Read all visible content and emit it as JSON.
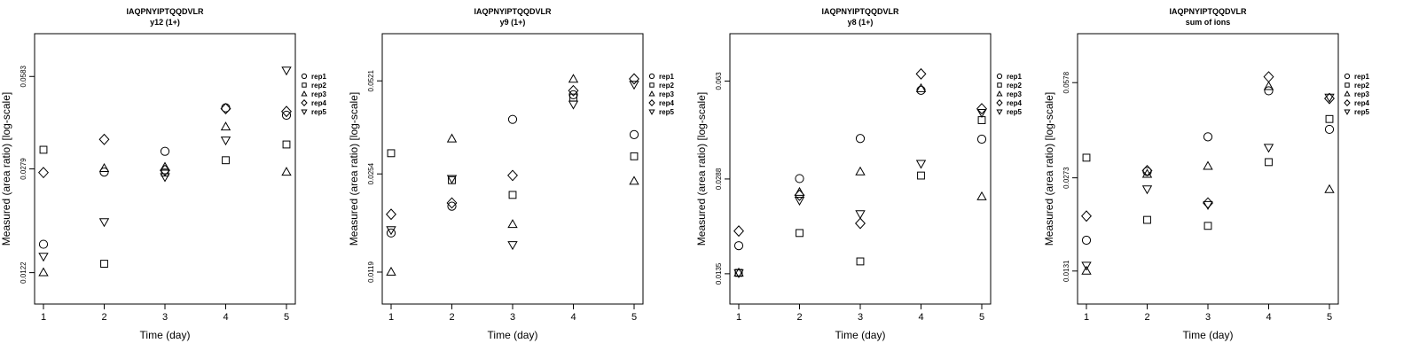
{
  "chart_data": [
    {
      "type": "scatter",
      "title": "IAQPNYIPTQQDVLR",
      "subtitle": "y12 (1+)",
      "xlabel": "Time (day)",
      "ylabel": "Measured (area ratio) [log-scale]",
      "x": [
        1,
        2,
        3,
        4,
        5
      ],
      "x_ticks": [
        "1",
        "2",
        "3",
        "4",
        "5"
      ],
      "y_scale": "log",
      "y_ticks": [
        "0.0122",
        "0.0279",
        "0.0583"
      ],
      "ylim": [
        0.0095,
        0.082
      ],
      "legend": [
        "rep1",
        "rep2",
        "rep3",
        "rep4",
        "rep5"
      ],
      "series": [
        {
          "name": "rep1",
          "marker": "circle",
          "values": [
            0.0153,
            0.0272,
            0.0321,
            0.0454,
            0.0428
          ]
        },
        {
          "name": "rep2",
          "marker": "square",
          "values": [
            0.0325,
            0.0131,
            0.0271,
            0.0299,
            0.0339
          ]
        },
        {
          "name": "rep3",
          "marker": "triangle-up",
          "values": [
            0.0122,
            0.028,
            0.0283,
            0.039,
            0.0272
          ]
        },
        {
          "name": "rep4",
          "marker": "diamond",
          "values": [
            0.0271,
            0.0353,
            0.0276,
            0.0451,
            0.0441
          ]
        },
        {
          "name": "rep5",
          "marker": "triangle-down",
          "values": [
            0.0139,
            0.0183,
            0.0262,
            0.0351,
            0.0613
          ]
        }
      ]
    },
    {
      "type": "scatter",
      "title": "IAQPNYIPTQQDVLR",
      "subtitle": "y9 (1+)",
      "xlabel": "Time (day)",
      "ylabel": "Measured (area ratio) [log-scale]",
      "x": [
        1,
        2,
        3,
        4,
        5
      ],
      "x_ticks": [
        "1",
        "2",
        "3",
        "4",
        "5"
      ],
      "y_scale": "log",
      "y_ticks": [
        "0.0119",
        "0.0254",
        "0.0521"
      ],
      "ylim": [
        0.0093,
        0.075
      ],
      "legend": [
        "rep1",
        "rep2",
        "rep3",
        "rep4",
        "rep5"
      ],
      "series": [
        {
          "name": "rep1",
          "marker": "circle",
          "values": [
            0.0161,
            0.0198,
            0.0387,
            0.0468,
            0.0344
          ]
        },
        {
          "name": "rep2",
          "marker": "square",
          "values": [
            0.0298,
            0.0242,
            0.0216,
            0.0458,
            0.0291
          ]
        },
        {
          "name": "rep3",
          "marker": "triangle-up",
          "values": [
            0.0119,
            0.0333,
            0.0172,
            0.0528,
            0.024
          ]
        },
        {
          "name": "rep4",
          "marker": "diamond",
          "values": [
            0.0186,
            0.0203,
            0.0251,
            0.0483,
            0.0529
          ]
        },
        {
          "name": "rep5",
          "marker": "triangle-down",
          "values": [
            0.0165,
            0.0245,
            0.0147,
            0.0435,
            0.0507
          ]
        }
      ]
    },
    {
      "type": "scatter",
      "title": "IAQPNYIPTQQDVLR",
      "subtitle": "y8 (1+)",
      "xlabel": "Time (day)",
      "ylabel": "Measured (area ratio) [log-scale]",
      "x": [
        1,
        2,
        3,
        4,
        5
      ],
      "x_ticks": [
        "1",
        "2",
        "3",
        "4",
        "5"
      ],
      "y_scale": "log",
      "y_ticks": [
        "0.0135",
        "0.0288",
        "0.063"
      ],
      "ylim": [
        0.0106,
        0.092
      ],
      "legend": [
        "rep1",
        "rep2",
        "rep3",
        "rep4",
        "rep5"
      ],
      "series": [
        {
          "name": "rep1",
          "marker": "circle",
          "values": [
            0.0169,
            0.0289,
            0.0398,
            0.0585,
            0.0396
          ]
        },
        {
          "name": "rep2",
          "marker": "square",
          "values": [
            0.0136,
            0.0187,
            0.0149,
            0.0296,
            0.0461
          ]
        },
        {
          "name": "rep3",
          "marker": "triangle-up",
          "values": [
            0.0136,
            0.0259,
            0.0305,
            0.0593,
            0.025
          ]
        },
        {
          "name": "rep4",
          "marker": "diamond",
          "values": [
            0.019,
            0.0253,
            0.0202,
            0.0667,
            0.0505
          ]
        },
        {
          "name": "rep5",
          "marker": "triangle-down",
          "values": [
            0.0136,
            0.0243,
            0.0218,
            0.0326,
            0.049
          ]
        }
      ]
    },
    {
      "type": "scatter",
      "title": "IAQPNYIPTQQDVLR",
      "subtitle": "sum of ions",
      "xlabel": "Time (day)",
      "ylabel": "Measured (area ratio) [log-scale]",
      "x": [
        1,
        2,
        3,
        4,
        5
      ],
      "x_ticks": [
        "1",
        "2",
        "3",
        "4",
        "5"
      ],
      "y_scale": "log",
      "y_ticks": [
        "0.0131",
        "0.0273",
        "0.0578"
      ],
      "ylim": [
        0.0101,
        0.085
      ],
      "legend": [
        "rep1",
        "rep2",
        "rep3",
        "rep4",
        "rep5"
      ],
      "series": [
        {
          "name": "rep1",
          "marker": "circle",
          "values": [
            0.0167,
            0.0287,
            0.0377,
            0.0542,
            0.04
          ]
        },
        {
          "name": "rep2",
          "marker": "square",
          "values": [
            0.032,
            0.0196,
            0.0187,
            0.0309,
            0.0434
          ]
        },
        {
          "name": "rep3",
          "marker": "triangle-up",
          "values": [
            0.0131,
            0.0281,
            0.0299,
            0.0561,
            0.0249
          ]
        },
        {
          "name": "rep4",
          "marker": "diamond",
          "values": [
            0.0202,
            0.0289,
            0.0224,
            0.0605,
            0.051
          ]
        },
        {
          "name": "rep5",
          "marker": "triangle-down",
          "values": [
            0.0137,
            0.025,
            0.0221,
            0.0347,
            0.0515
          ]
        }
      ]
    }
  ]
}
